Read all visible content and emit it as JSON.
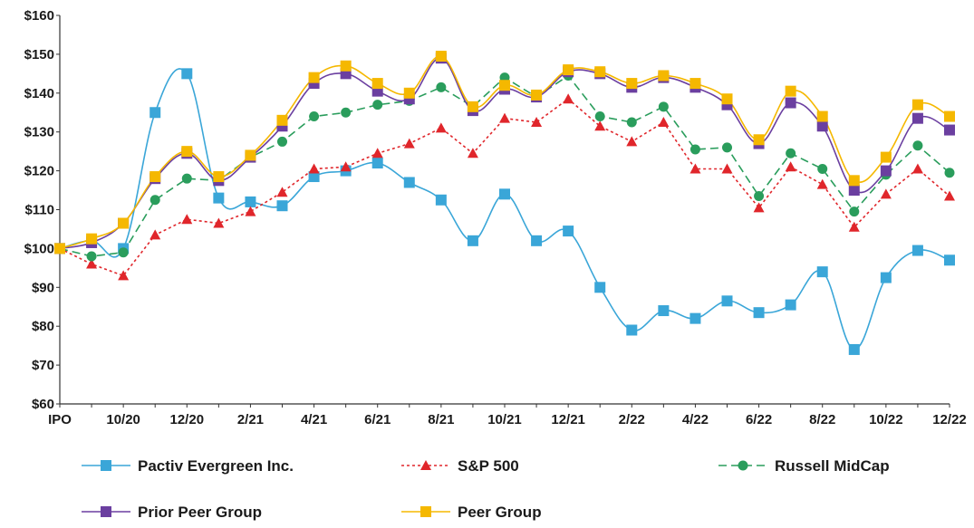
{
  "chart_data": {
    "type": "line",
    "title": "",
    "xlabel": "",
    "ylabel": "",
    "ylim": [
      60,
      160
    ],
    "y_ticks": [
      "$60",
      "$70",
      "$80",
      "$90",
      "$100",
      "$110",
      "$120",
      "$130",
      "$140",
      "$150",
      "$160"
    ],
    "x_ticks": [
      "IPO",
      "10/20",
      "12/20",
      "2/21",
      "4/21",
      "6/21",
      "8/21",
      "10/21",
      "12/21",
      "2/22",
      "4/22",
      "6/22",
      "8/22",
      "10/22",
      "12/22"
    ],
    "x": [
      "IPO",
      "9/20",
      "10/20",
      "11/20",
      "12/20",
      "1/21",
      "2/21",
      "3/21",
      "4/21",
      "5/21",
      "6/21",
      "7/21",
      "8/21",
      "9/21",
      "10/21",
      "11/21",
      "12/21",
      "1/22",
      "2/22",
      "3/22",
      "4/22",
      "5/22",
      "6/22",
      "7/22",
      "8/22",
      "9/22",
      "10/22",
      "11/22",
      "12/22"
    ],
    "grid": false,
    "legend_position": "bottom",
    "series": [
      {
        "name": "Pactiv Evergreen Inc.",
        "color": "#3aa6d8",
        "line_style": "solid",
        "marker": "square",
        "smooth": true,
        "values": [
          100,
          102,
          100,
          135,
          145,
          113,
          112,
          111,
          118.5,
          120,
          122,
          117,
          112.5,
          102,
          114,
          102,
          104.5,
          90,
          79,
          84,
          82,
          86.5,
          83.5,
          85.5,
          94,
          74,
          92.5,
          99.5,
          97
        ]
      },
      {
        "name": "S&P 500",
        "color": "#e0262b",
        "line_style": "dotted",
        "marker": "triangle",
        "smooth": false,
        "values": [
          100,
          96,
          93,
          103.5,
          107.5,
          106.5,
          109.5,
          114.5,
          120.5,
          121,
          124.5,
          127,
          131,
          124.5,
          133.5,
          132.5,
          138.5,
          131.5,
          127.5,
          132.5,
          120.5,
          120.5,
          110.5,
          121,
          116.5,
          105.5,
          114,
          120.5,
          113.5
        ]
      },
      {
        "name": "Russell MidCap",
        "color": "#2a9d5c",
        "line_style": "dashed",
        "marker": "circle",
        "smooth": false,
        "values": [
          100,
          98,
          99,
          112.5,
          118,
          117.5,
          123.5,
          127.5,
          134,
          135,
          137,
          138,
          141.5,
          136.5,
          144,
          139,
          144.5,
          134,
          132.5,
          136.5,
          125.5,
          126,
          113.5,
          124.5,
          120.5,
          109.5,
          119,
          126.5,
          119.5
        ]
      },
      {
        "name": "Prior Peer Group",
        "color": "#6b3fa0",
        "line_style": "solid",
        "marker": "square",
        "smooth": true,
        "values": [
          100,
          101.5,
          106.5,
          118,
          124.5,
          117.5,
          123.5,
          131.5,
          142.5,
          145,
          140.5,
          138.5,
          149,
          135.5,
          141,
          139,
          145.5,
          145,
          141.5,
          144,
          141.5,
          137,
          127,
          137.5,
          131.5,
          115,
          120,
          133.5,
          130.5
        ]
      },
      {
        "name": "Peer Group",
        "color": "#f5b800",
        "line_style": "solid",
        "marker": "square",
        "smooth": true,
        "values": [
          100,
          102.5,
          106.5,
          118.5,
          125,
          118.5,
          124,
          133,
          144,
          147,
          142.5,
          140,
          149.5,
          136.5,
          142,
          139.5,
          146,
          145.5,
          142.5,
          144.5,
          142.5,
          138.5,
          128,
          140.5,
          134,
          117.5,
          123.5,
          137,
          134
        ]
      }
    ]
  }
}
